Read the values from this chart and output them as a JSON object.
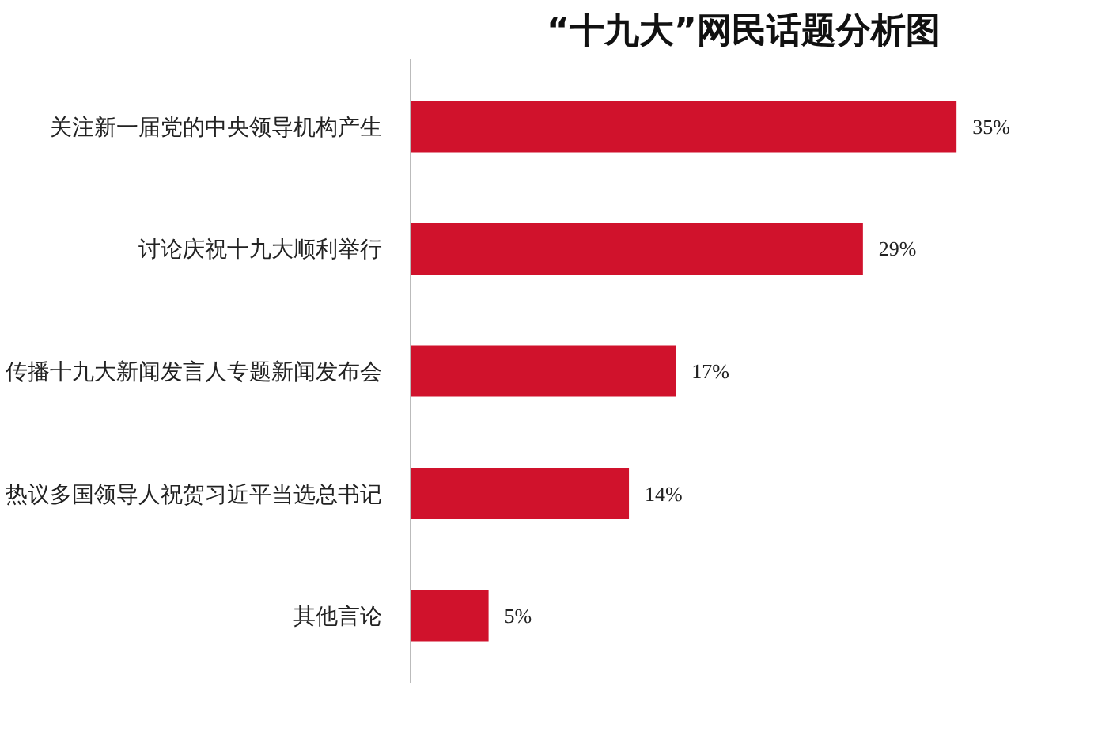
{
  "chart_data": {
    "type": "bar",
    "orientation": "horizontal",
    "title": "“十九大”网民话题分析图",
    "categories": [
      "关注新一届党的中央领导机构产生",
      "讨论庆祝十九大顺利举行",
      "传播十九大新闻发言人专题新闻发布会",
      "热议多国领导人祝贺习近平当选总书记",
      "其他言论"
    ],
    "values": [
      35,
      29,
      17,
      14,
      5
    ],
    "value_labels": [
      "35%",
      "29%",
      "17%",
      "14%",
      "5%"
    ],
    "color": "#d0122c",
    "grid": false
  }
}
